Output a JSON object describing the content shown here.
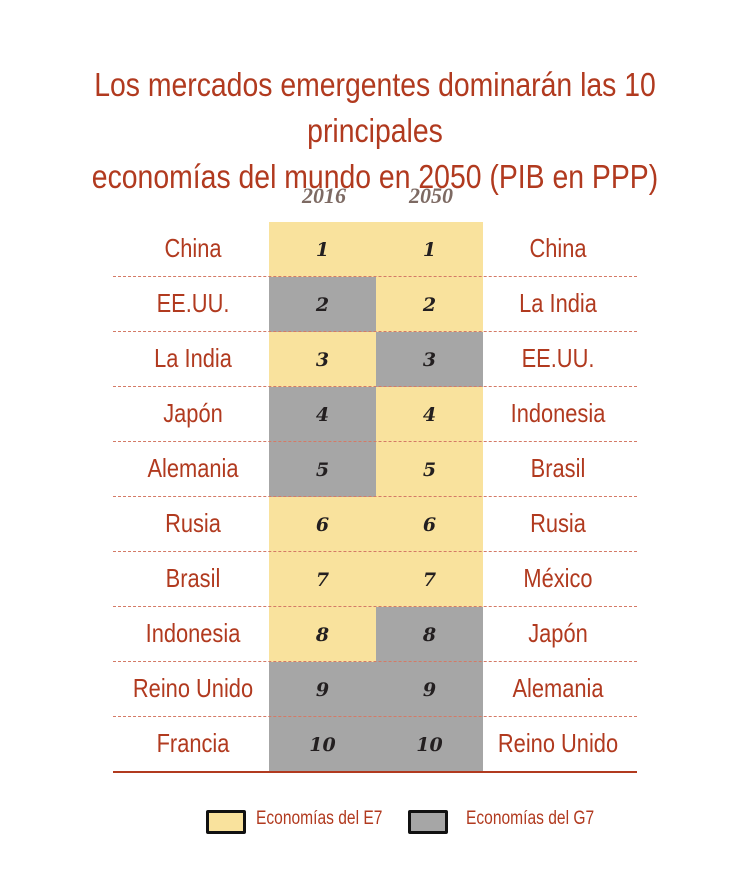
{
  "chart_data": {
    "type": "table",
    "title_lines": [
      "Los mercados emergentes dominarán las 10 principales",
      "economías del mundo en 2050 (PIB en PPP)"
    ],
    "columns": [
      "2016",
      "2050"
    ],
    "rows": [
      {
        "rank": "1",
        "country_2016": "China",
        "group_2016": "E7",
        "country_2050": "China",
        "group_2050": "E7"
      },
      {
        "rank": "2",
        "country_2016": "EE.UU.",
        "group_2016": "G7",
        "country_2050": "La India",
        "group_2050": "E7"
      },
      {
        "rank": "3",
        "country_2016": "La India",
        "group_2016": "E7",
        "country_2050": "EE.UU.",
        "group_2050": "G7"
      },
      {
        "rank": "4",
        "country_2016": "Japón",
        "group_2016": "G7",
        "country_2050": "Indonesia",
        "group_2050": "E7"
      },
      {
        "rank": "5",
        "country_2016": "Alemania",
        "group_2016": "G7",
        "country_2050": "Brasil",
        "group_2050": "E7"
      },
      {
        "rank": "6",
        "country_2016": "Rusia",
        "group_2016": "E7",
        "country_2050": "Rusia",
        "group_2050": "E7"
      },
      {
        "rank": "7",
        "country_2016": "Brasil",
        "group_2016": "E7",
        "country_2050": "México",
        "group_2050": "E7"
      },
      {
        "rank": "8",
        "country_2016": "Indonesia",
        "group_2016": "E7",
        "country_2050": "Japón",
        "group_2050": "G7"
      },
      {
        "rank": "9",
        "country_2016": "Reino Unido",
        "group_2016": "G7",
        "country_2050": "Alemania",
        "group_2050": "G7"
      },
      {
        "rank": "10",
        "country_2016": "Francia",
        "group_2016": "G7",
        "country_2050": "Reino Unido",
        "group_2050": "G7"
      }
    ],
    "legend": [
      {
        "group": "E7",
        "label": "Economías del E7",
        "color": "#f9e29d"
      },
      {
        "group": "G7",
        "label": "Economías del G7",
        "color": "#a6a6a6"
      }
    ],
    "colors": {
      "text_accent": "#b13a1f",
      "year_label": "#7d6a63"
    }
  }
}
